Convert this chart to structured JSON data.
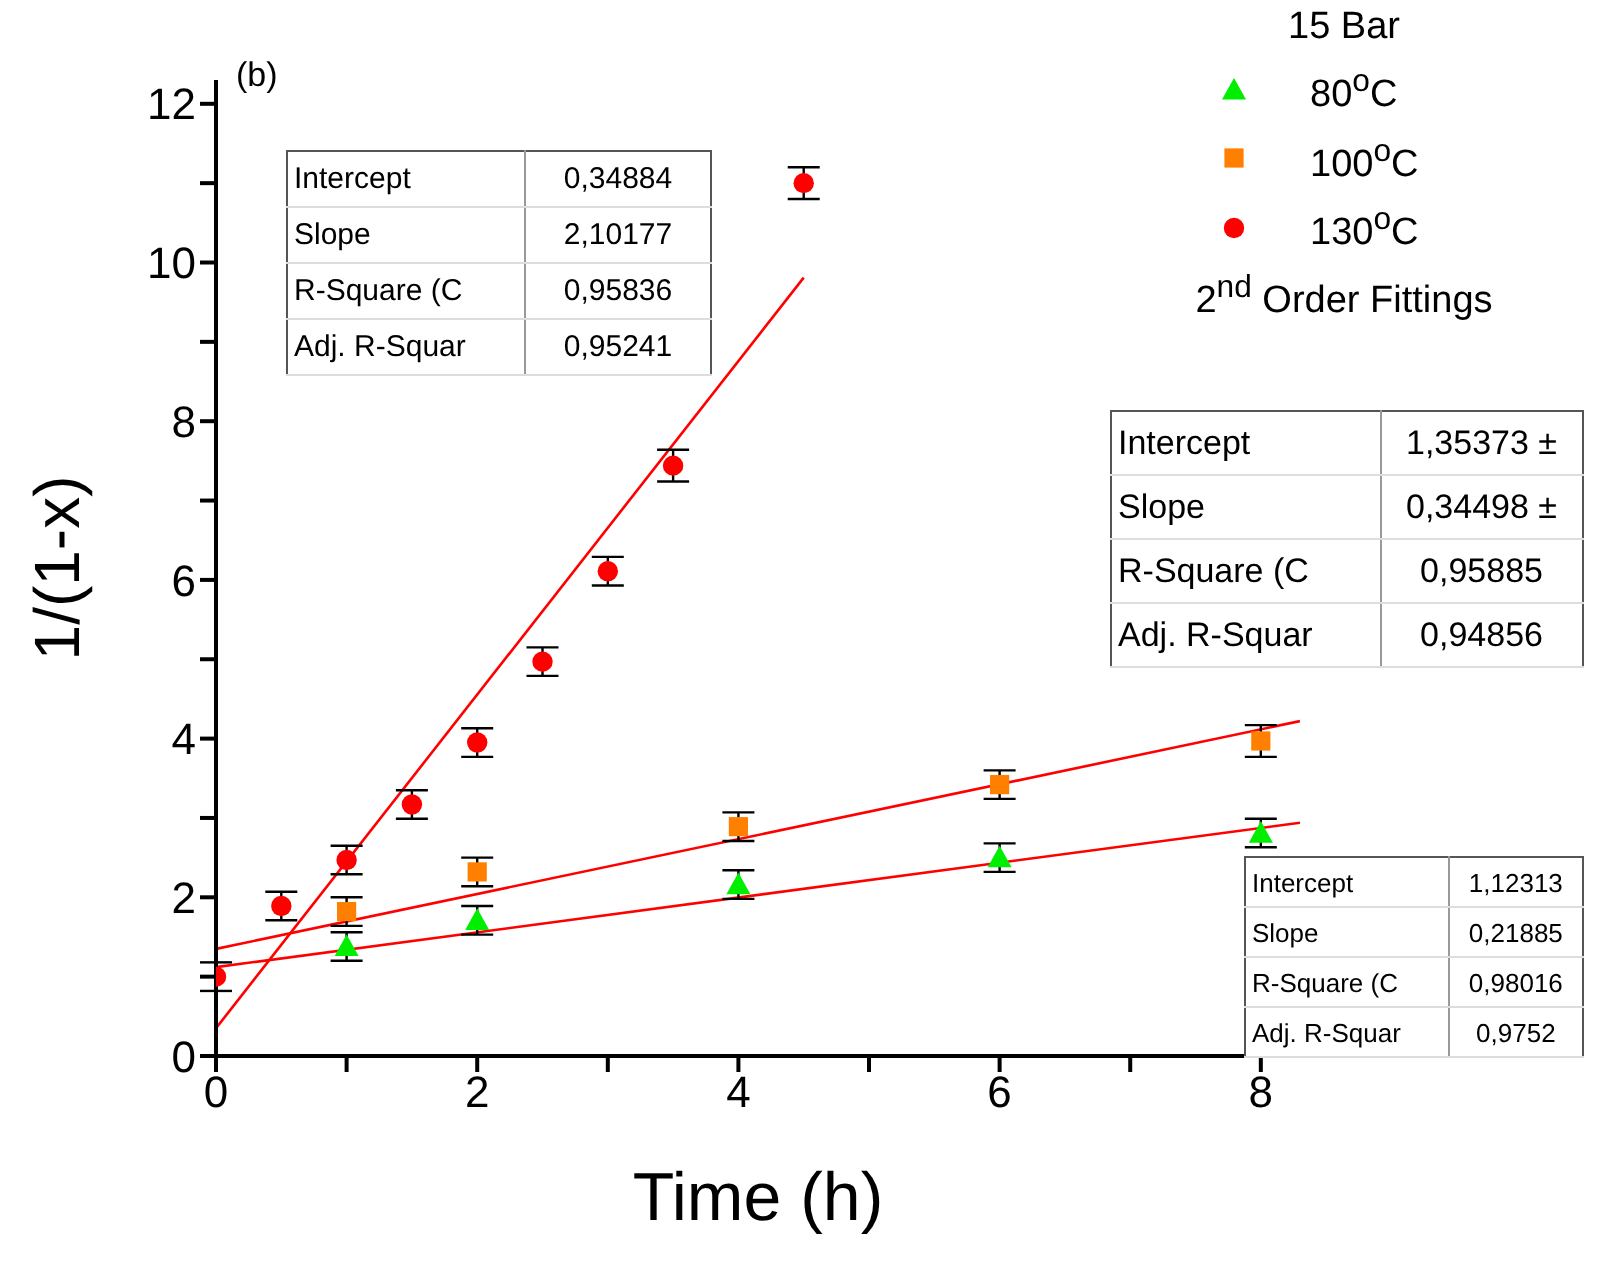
{
  "chart_data": {
    "type": "scatter",
    "xlabel": "Time (h)",
    "ylabel": "1/(1-x)",
    "legend_title": "15 Bar",
    "legend": "top right",
    "grid": false,
    "xlim": [
      0,
      8.3
    ],
    "ylim": [
      0,
      12.3
    ],
    "xticks": [
      0,
      {
        "value": 1,
        "label": null
      },
      2,
      {
        "value": 3,
        "label": null
      },
      4,
      {
        "value": 5,
        "label": null
      },
      6,
      {
        "value": 7,
        "label": null
      },
      8
    ],
    "yticks": [
      0,
      {
        "value": 1,
        "label": null
      },
      2,
      {
        "value": 3,
        "label": null
      },
      4,
      {
        "value": 5,
        "label": null
      },
      6,
      {
        "value": 7,
        "label": null
      },
      8,
      {
        "value": 9,
        "label": null
      },
      10,
      {
        "value": 11,
        "label": null
      },
      12
    ],
    "series": [
      {
        "name": "80$^{o}$C",
        "color": "#00ee00",
        "marker": "triangle",
        "x": [
          1,
          2,
          4,
          6,
          8
        ],
        "values": [
          1.38,
          1.71,
          2.16,
          2.5,
          2.81
        ],
        "errors": [
          0.18,
          0.18,
          0.18,
          0.18,
          0.18
        ]
      },
      {
        "name": "100$^{o}$C",
        "color": "#ff8000",
        "marker": "square",
        "x": [
          1,
          2,
          4,
          6,
          8
        ],
        "values": [
          1.82,
          2.32,
          2.89,
          3.42,
          3.97
        ],
        "errors": [
          0.18,
          0.18,
          0.18,
          0.18,
          0.2
        ]
      },
      {
        "name": "130$^{o}$C",
        "color": "#ff0000",
        "marker": "circle",
        "x": [
          0,
          0.5,
          1,
          1.5,
          2,
          2.5,
          3,
          3.5,
          4.5
        ],
        "values": [
          1.0,
          1.89,
          2.47,
          3.17,
          3.95,
          4.97,
          6.11,
          7.44,
          11.0
        ],
        "errors": [
          0.18,
          0.18,
          0.18,
          0.18,
          0.18,
          0.18,
          0.18,
          0.2,
          0.2
        ]
      },
      {
        "type": "line",
        "color": "#ff0000",
        "marker": "none",
        "x": [
          0,
          4.5
        ],
        "values": [
          0.35,
          9.81
        ]
      },
      {
        "type": "line",
        "color": "#ff0000",
        "marker": "none",
        "x": [
          0,
          8.3
        ],
        "values": [
          1.35,
          4.22
        ]
      },
      {
        "type": "line",
        "color": "#ff0000",
        "marker": "none",
        "x": [
          0,
          8.3
        ],
        "values": [
          1.12,
          2.94
        ]
      }
    ],
    "annotations": [
      "(b)",
      "2$^{nd}$ Order Fittings",
      "Intercept",
      "0,34884",
      "Slope",
      "2,10177",
      "R-Square (C",
      "0,95836",
      "Adj. R-Squar",
      "0,95241",
      "Intercept",
      "1,35373 ±",
      "Slope",
      "0,34498 ±",
      "R-Square (C",
      "0,95885",
      "Adj. R-Squar",
      "0,94856",
      "Intercept",
      "1,12313",
      "Slope",
      "0,21885",
      "R-Square (C",
      "0,98016",
      "Adj. R-Squar",
      "0,9752"
    ]
  }
}
